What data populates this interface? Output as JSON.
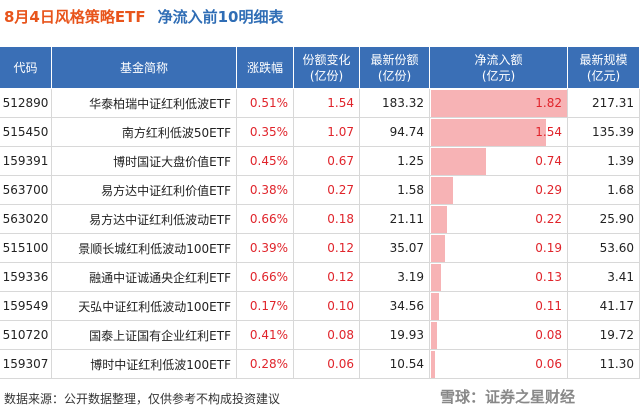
{
  "title": {
    "date_part": "8月4日风格策略ETF",
    "rest": "净流入前10明细表"
  },
  "table": {
    "header": [
      [
        "代码"
      ],
      [
        "基金简称"
      ],
      [
        "涨跌幅"
      ],
      [
        "份额变化",
        "(亿份)"
      ],
      [
        "最新份额",
        "(亿份)"
      ],
      [
        "净流入额",
        "(亿元)"
      ],
      [
        "最新规模",
        "(亿元)"
      ]
    ],
    "rows": [
      [
        "512890",
        "华泰柏瑞中证红利低波ETF",
        "0.51%",
        "1.54",
        "183.32",
        1.82,
        "217.31"
      ],
      [
        "515450",
        "南方红利低波50ETF",
        "0.35%",
        "1.07",
        "94.74",
        1.54,
        "135.39"
      ],
      [
        "159391",
        "博时国证大盘价值ETF",
        "0.45%",
        "0.67",
        "1.25",
        0.74,
        "1.39"
      ],
      [
        "563700",
        "易方达中证红利价值ETF",
        "0.38%",
        "0.27",
        "1.58",
        0.29,
        "1.68"
      ],
      [
        "563020",
        "易方达中证红利低波动ETF",
        "0.66%",
        "0.18",
        "21.11",
        0.22,
        "25.90"
      ],
      [
        "515100",
        "景顺长城红利低波动100ETF",
        "0.39%",
        "0.12",
        "35.07",
        0.19,
        "53.60"
      ],
      [
        "159336",
        "融通中证诚通央企红利ETF",
        "0.66%",
        "0.12",
        "3.19",
        0.13,
        "3.41"
      ],
      [
        "159549",
        "天弘中证红利低波动100ETF",
        "0.17%",
        "0.10",
        "34.56",
        0.11,
        "41.17"
      ],
      [
        "510720",
        "国泰上证国有企业红利ETF",
        "0.41%",
        "0.08",
        "19.93",
        0.08,
        "19.72"
      ],
      [
        "159307",
        "博时中证红利低波100ETF",
        "0.28%",
        "0.06",
        "10.54",
        0.06,
        "11.30"
      ]
    ]
  },
  "footer": "数据来源：公开数据整理，仅供参考不构成投资建议",
  "watermark": "雪球：证券之星财经"
}
